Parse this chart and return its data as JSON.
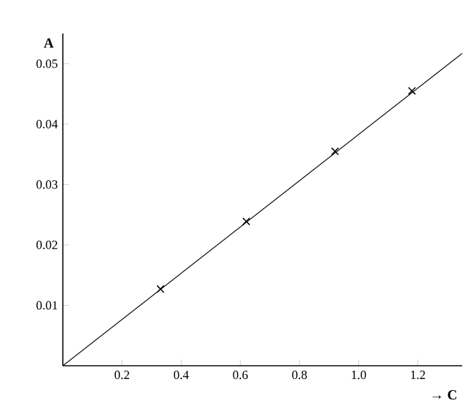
{
  "chart_data": {
    "type": "scatter",
    "xlabel": "→ C",
    "ylabel": "A",
    "xlim": [
      0,
      1.35
    ],
    "ylim": [
      0,
      0.055
    ],
    "xticks": [
      0.2,
      0.4,
      0.6,
      0.8,
      {
        "value": 1,
        "label": "1.0"
      },
      1.2
    ],
    "yticks": [
      0.01,
      0.02,
      0.03,
      0.04,
      0.05
    ],
    "series": [
      {
        "color": "#000000",
        "marker": "cross",
        "x": [
          0.33,
          0.62,
          0.92,
          1.18
        ],
        "values": [
          0.0127,
          0.0239,
          0.0355,
          0.0455
        ]
      },
      {
        "type": "line",
        "color": "#000000",
        "marker": "none",
        "line_style": "solid",
        "x": [
          0,
          1.35
        ],
        "values": [
          0,
          0.0517
        ]
      }
    ]
  }
}
